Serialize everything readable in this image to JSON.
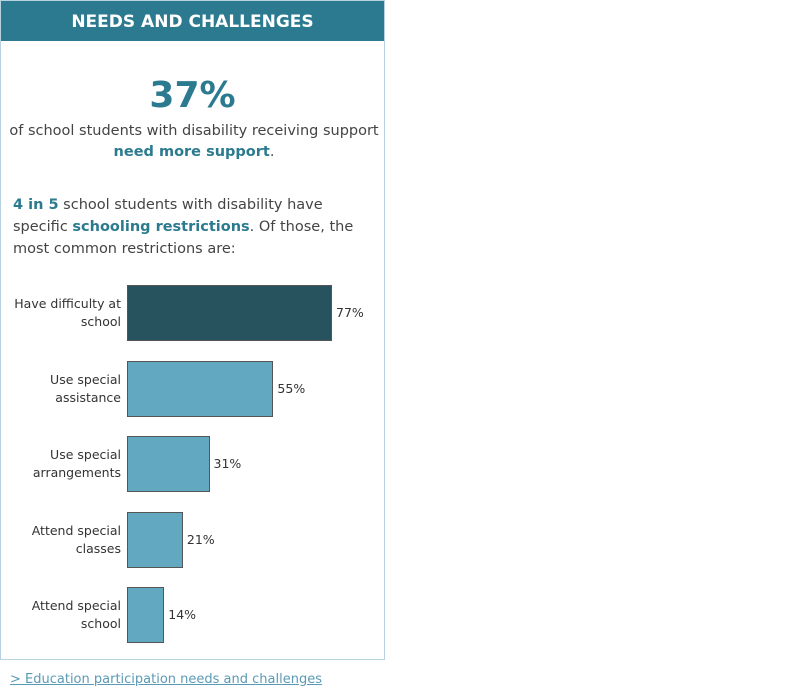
{
  "header": {
    "title": "NEEDS AND CHALLENGES"
  },
  "stat": {
    "value": "37%",
    "description": "of school students with disability receiving support ",
    "highlight": "need more support",
    "end": "."
  },
  "paragraph": [
    {
      "text": "4 in 5",
      "highlight": true
    },
    {
      "text": " school students with disability have specific ",
      "highlight": false
    },
    {
      "text": "schooling restrictions",
      "highlight": true
    },
    {
      "text": ". Of those, the most common restrictions are:",
      "highlight": false
    }
  ],
  "chart_data": {
    "type": "bar",
    "orientation": "horizontal",
    "categories": [
      "Have difficulty at school",
      "Use special assistance",
      "Use special arrangements",
      "Attend special classes",
      "Attend special school"
    ],
    "values": [
      77,
      55,
      31,
      21,
      14
    ],
    "value_labels": [
      "77%",
      "55%",
      "31%",
      "21%",
      "14%"
    ],
    "colors": [
      "#27535f",
      "#62a8c0",
      "#62a8c0",
      "#62a8c0",
      "#62a8c0"
    ]
  },
  "link": {
    "text": ">  Education participation needs and challenges"
  }
}
